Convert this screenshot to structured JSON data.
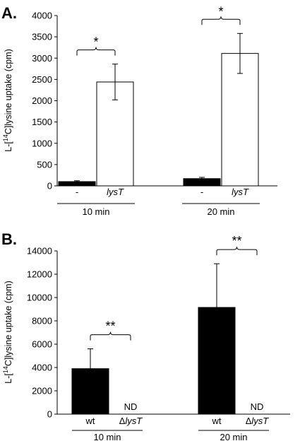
{
  "chart_data": [
    {
      "panel": "A.",
      "type": "bar",
      "ylabel_parts": [
        "L-[",
        "14",
        "C]lysine uptake (cpm)"
      ],
      "ylim": [
        0,
        4000
      ],
      "yticks": [
        0,
        500,
        1000,
        1500,
        2000,
        2500,
        3000,
        3500,
        4000
      ],
      "groups": [
        {
          "time": "10 min",
          "bars": [
            {
              "label": "-",
              "italic": false,
              "value": 100,
              "error": 20,
              "fill": "#000000"
            },
            {
              "label": "lysT",
              "italic": true,
              "value": 2440,
              "error": 420,
              "fill": "#ffffff"
            }
          ],
          "significance": "*"
        },
        {
          "time": "20 min",
          "bars": [
            {
              "label": "-",
              "italic": false,
              "value": 170,
              "error": 30,
              "fill": "#000000"
            },
            {
              "label": "lysT",
              "italic": true,
              "value": 3110,
              "error": 470,
              "fill": "#ffffff"
            }
          ],
          "significance": "*"
        }
      ]
    },
    {
      "panel": "B.",
      "type": "bar",
      "ylabel_parts": [
        "L-[",
        "14",
        "C]lysine uptake (cpm)"
      ],
      "ylim": [
        0,
        14000
      ],
      "yticks": [
        0,
        2000,
        4000,
        6000,
        8000,
        10000,
        12000,
        14000
      ],
      "groups": [
        {
          "time": "10 min",
          "bars": [
            {
              "label": "wt",
              "italic": false,
              "value": 3900,
              "error": 1700,
              "fill": "#000000"
            },
            {
              "label_prefix": "Δ",
              "label": "lysT",
              "italic": true,
              "value": null,
              "note": "ND",
              "fill": "#000000"
            }
          ],
          "significance": "**"
        },
        {
          "time": "20 min",
          "bars": [
            {
              "label": "wt",
              "italic": false,
              "value": 9150,
              "error": 3750,
              "fill": "#000000"
            },
            {
              "label_prefix": "Δ",
              "label": "lysT",
              "italic": true,
              "value": null,
              "note": "ND",
              "fill": "#000000"
            }
          ],
          "significance": "**"
        }
      ]
    }
  ]
}
